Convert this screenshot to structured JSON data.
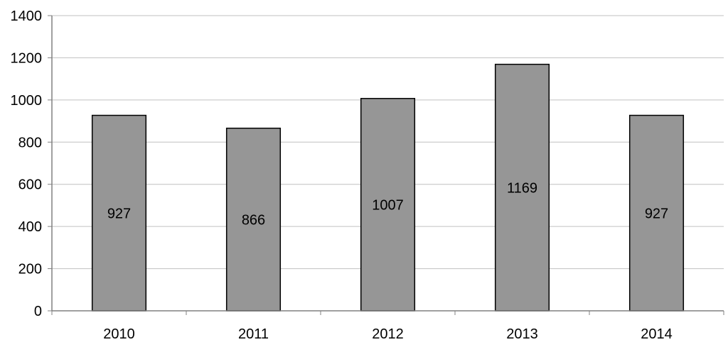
{
  "chart_data": {
    "type": "bar",
    "categories": [
      "2010",
      "2011",
      "2012",
      "2013",
      "2014"
    ],
    "values": [
      927,
      866,
      1007,
      1169,
      927
    ],
    "data_labels": [
      "927",
      "866",
      "1007",
      "1169",
      "927"
    ],
    "title": "",
    "xlabel": "",
    "ylabel": "",
    "ylim": [
      0,
      1400
    ],
    "yticks": [
      0,
      200,
      400,
      600,
      800,
      1000,
      1200,
      1400
    ],
    "ytick_labels": [
      "0",
      "200",
      "400",
      "600",
      "800",
      "1000",
      "1200",
      "1400"
    ],
    "grid": true,
    "legend": "none",
    "colors": {
      "bar_fill": "#969696",
      "bar_stroke": "#000000",
      "grid": "#c0c0c0",
      "axis": "#808080"
    }
  }
}
